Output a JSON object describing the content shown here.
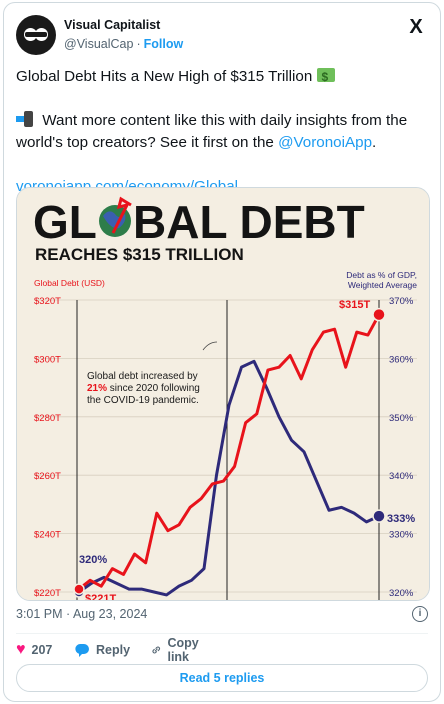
{
  "post": {
    "author_name": "Visual Capitalist",
    "author_handle": "@VisualCap",
    "separator": "·",
    "follow_label": "Follow",
    "x_logo": "X",
    "line1": "Global Debt Hits a New High of $315 Trillion",
    "line2_before": "Want more content like this with daily insights from the world's top creators? See it first on the ",
    "mention": "@VoronoiApp",
    "line2_after": ".",
    "link": "voronoiapp.com/economy/Global...",
    "timestamp": "3:01 PM · Aug 23, 2024",
    "info_icon": "i",
    "likes_count": "207",
    "reply_label": "Reply",
    "copy_link_label": "Copy link",
    "read_replies_label": "Read 5 replies"
  },
  "icons": {
    "heart": "heart-icon",
    "reply": "reply-icon",
    "copy": "link-icon",
    "info": "info-icon",
    "money": "money-emoji-icon",
    "phone": "phone-emoji-icon"
  },
  "colors": {
    "accent": "#1d9bf0",
    "like": "#f91880",
    "red_series": "#e8131b",
    "blue_series": "#2e2a7a",
    "chart_bg": "#f4eee2"
  },
  "chart_data": {
    "type": "line",
    "title_part1": "GL",
    "title_part2": "BAL DEBT",
    "subtitle": "REACHES $315 TRILLION",
    "left_axis_label": "Global Debt (USD)",
    "right_axis_label_1": "Debt as % of GDP,",
    "right_axis_label_2": "Weighted Average",
    "left_ticks": [
      "$320T",
      "$300T",
      "$280T",
      "$260T",
      "$240T",
      "$220T"
    ],
    "right_ticks": [
      "370%",
      "360%",
      "350%",
      "340%",
      "330%",
      "320%"
    ],
    "ylim_left": [
      220,
      320
    ],
    "ylim_right": [
      320,
      370
    ],
    "annotation_1": "Global debt increased by",
    "annotation_2_highlight": "21%",
    "annotation_2_rest": " since 2020 following",
    "annotation_3": "the COVID-19 pandemic.",
    "label_start_pct": "320%",
    "label_start_debt": "$221T",
    "label_end_debt": "$315T",
    "label_end_pct": "333%",
    "series": [
      {
        "name": "Global Debt (USD)",
        "color": "#e8131b",
        "values": [
          221,
          224,
          222,
          228,
          226,
          233,
          230,
          247,
          241,
          243,
          249,
          252,
          257,
          258,
          263,
          278,
          281,
          296,
          297,
          301,
          293,
          303,
          309,
          310,
          297,
          309,
          308,
          315
        ]
      },
      {
        "name": "Debt as % of GDP, Weighted Average",
        "color": "#2e2a7a",
        "values": [
          320,
          321.5,
          322.5,
          321.5,
          320.5,
          320.5,
          320.0,
          319.5,
          321.0,
          322.0,
          324.0,
          340.0,
          352.0,
          358.5,
          359.5,
          355.0,
          350.0,
          346.0,
          344.0,
          339.0,
          334.0,
          334.5,
          333.5,
          332.0,
          333.0
        ]
      }
    ]
  }
}
